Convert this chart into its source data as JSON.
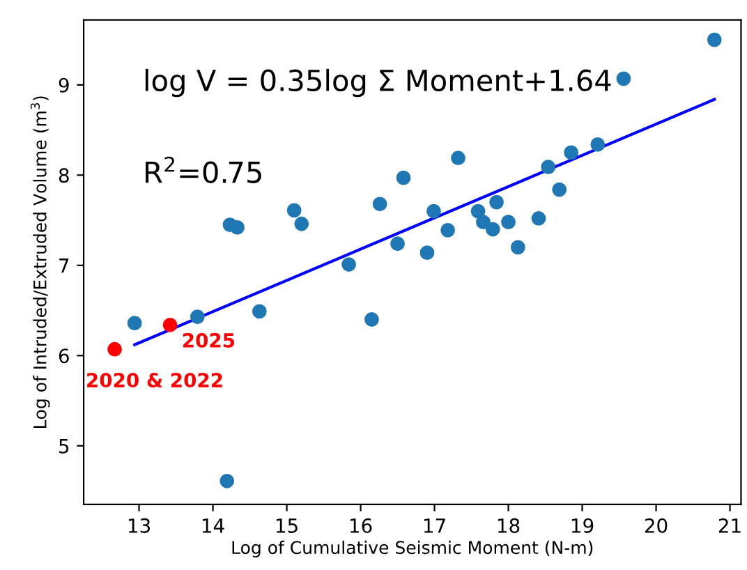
{
  "chart_data": {
    "type": "scatter",
    "xlabel": "Log of Cumulative Seismic Moment (N-m)",
    "ylabel": "Log of Intruded/Extruded Volume (m$^{3}$)",
    "xlim": [
      12.25,
      21.15
    ],
    "ylim": [
      4.35,
      9.72
    ],
    "xticks": [
      13,
      14,
      15,
      16,
      17,
      18,
      19,
      20,
      21
    ],
    "yticks": [
      5,
      6,
      7,
      8,
      9
    ],
    "grid": false,
    "legend": false,
    "marker": "circle",
    "series": [
      {
        "color": "#1f77b4",
        "x": [
          12.94,
          13.79,
          14.19,
          14.23,
          14.33,
          14.63,
          15.1,
          15.2,
          15.84,
          16.15,
          16.26,
          16.5,
          16.58,
          16.9,
          16.99,
          17.18,
          17.32,
          17.59,
          17.66,
          17.79,
          17.84,
          18.0,
          18.13,
          18.41,
          18.54,
          18.69,
          18.85,
          19.21,
          19.56,
          20.79
        ],
        "values": [
          6.36,
          6.43,
          4.61,
          7.45,
          7.42,
          6.49,
          7.61,
          7.46,
          7.01,
          6.4,
          7.68,
          7.24,
          7.97,
          7.14,
          7.6,
          7.39,
          8.19,
          7.6,
          7.48,
          7.4,
          7.7,
          7.48,
          7.2,
          7.52,
          8.09,
          7.84,
          8.25,
          8.34,
          9.07,
          9.5
        ]
      },
      {
        "color": "#ff0000",
        "x": [
          12.67,
          13.42
        ],
        "values": [
          6.07,
          6.34
        ]
      },
      {
        "type": "line",
        "color": "#0000ff",
        "marker": "none",
        "line_style": "solid",
        "x": [
          12.94,
          20.79
        ],
        "values": [
          6.12,
          8.84
        ]
      }
    ],
    "annotations": [
      "log V = 0.35log Σ Moment+1.64",
      "R$^{2}$=0.75",
      {
        "text": "2025",
        "x": 13.42,
        "y": 6.34
      },
      {
        "text": "2020 & 2022",
        "x": 12.67,
        "y": 6.07
      }
    ]
  }
}
